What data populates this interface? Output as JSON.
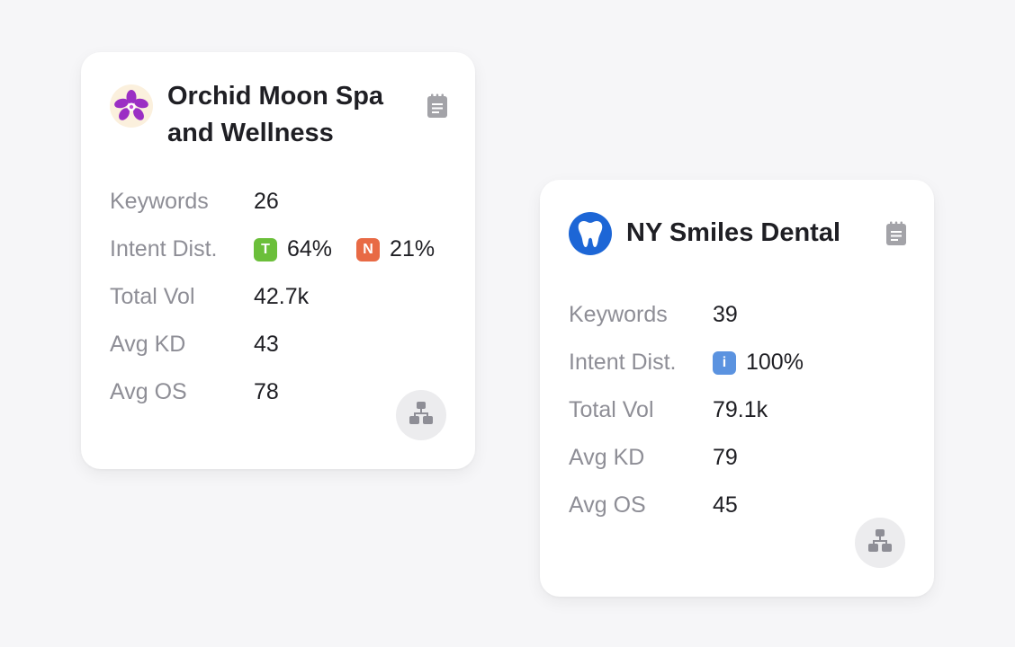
{
  "cards": [
    {
      "name": "Orchid Moon Spa and Wellness",
      "avatar_icon": "orchid-flower-icon",
      "avatar_bg": "#fbf0dd",
      "stats": {
        "keywords": {
          "label": "Keywords",
          "value": "26"
        },
        "intent": {
          "label": "Intent Dist.",
          "items": [
            {
              "letter": "T",
              "color": "#6bbf3a",
              "pct": "64%"
            },
            {
              "letter": "N",
              "color": "#e86a45",
              "pct": "21%"
            }
          ]
        },
        "total_vol": {
          "label": "Total Vol",
          "value": "42.7k"
        },
        "avg_kd": {
          "label": "Avg KD",
          "value": "43"
        },
        "avg_os": {
          "label": "Avg OS",
          "value": "78"
        }
      },
      "report_icon": "clipboard-report-icon",
      "action_icon": "sitemap-icon"
    },
    {
      "name": "NY Smiles Dental",
      "avatar_icon": "tooth-icon",
      "avatar_bg": "#1d66d6",
      "stats": {
        "keywords": {
          "label": "Keywords",
          "value": "39"
        },
        "intent": {
          "label": "Intent Dist.",
          "items": [
            {
              "letter": "i",
              "color": "#5b93e0",
              "pct": "100%"
            }
          ]
        },
        "total_vol": {
          "label": "Total Vol",
          "value": "79.1k"
        },
        "avg_kd": {
          "label": "Avg KD",
          "value": "79"
        },
        "avg_os": {
          "label": "Avg OS",
          "value": "45"
        }
      },
      "report_icon": "clipboard-report-icon",
      "action_icon": "sitemap-icon"
    }
  ]
}
